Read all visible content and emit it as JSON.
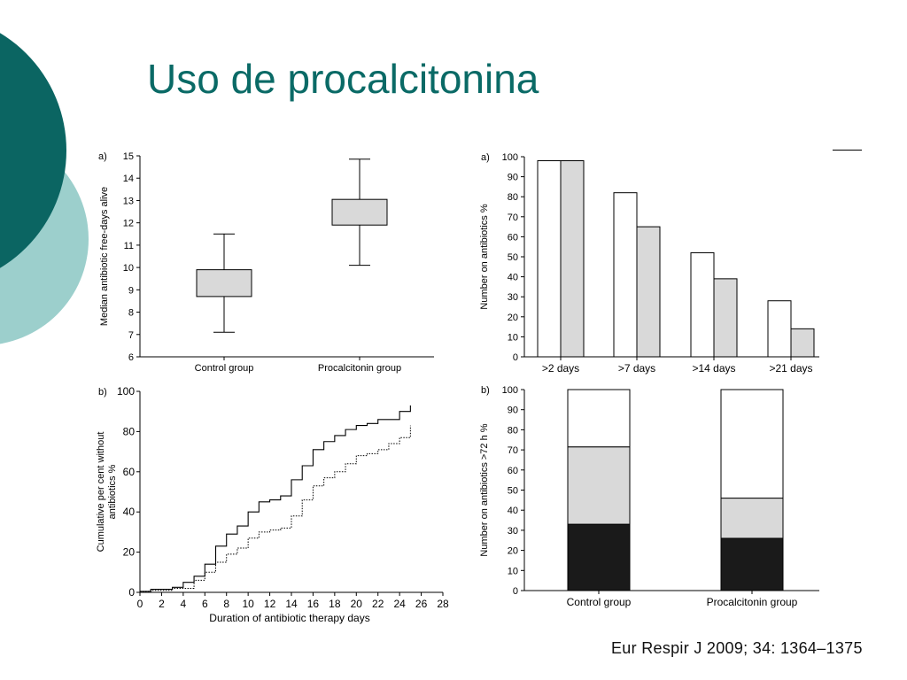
{
  "slide": {
    "title": "Uso de procalcitonina",
    "citation": "Eur Respir J 2009; 34: 1364–1375"
  },
  "colors": {
    "title": "#0a6a66",
    "circle_dark": "#0b6562",
    "circle_light": "#9ccfcc",
    "box_fill": "#d9d9d9",
    "black": "#1a1a1a"
  },
  "chart_data": [
    {
      "id": "boxplot",
      "type": "box",
      "panel_label": "a)",
      "ylabel": "Median antibiotic free-days alive",
      "ylim": [
        6,
        15
      ],
      "yticks": [
        6,
        7,
        8,
        9,
        10,
        11,
        12,
        13,
        14,
        15
      ],
      "categories": [
        "Control group",
        "Procalcitonin group"
      ],
      "boxes": [
        {
          "min": 7.1,
          "q1": 8.7,
          "q3": 9.9,
          "max": 11.5
        },
        {
          "min": 10.1,
          "q1": 11.9,
          "q3": 13.05,
          "max": 14.85
        }
      ]
    },
    {
      "id": "bars",
      "type": "bar",
      "panel_label": "a)",
      "ylabel": "Number on antibiotics %",
      "ylim": [
        0,
        100
      ],
      "yticks": [
        0,
        10,
        20,
        30,
        40,
        50,
        60,
        70,
        80,
        90,
        100
      ],
      "categories": [
        ">2 days",
        ">7 days",
        ">14 days",
        ">21 days"
      ],
      "series": [
        {
          "values": [
            98,
            82,
            52,
            28
          ],
          "fill": "#ffffff"
        },
        {
          "values": [
            98,
            65,
            39,
            14
          ],
          "fill": "#d9d9d9"
        }
      ]
    },
    {
      "id": "steps",
      "type": "line",
      "panel_label": "b)",
      "ylabel_lines": [
        "Cumulative per cent without",
        "antibiotics %"
      ],
      "xlabel": "Duration of antibiotic therapy days",
      "xlim": [
        0,
        28
      ],
      "ylim": [
        0,
        100
      ],
      "xticks": [
        0,
        2,
        4,
        6,
        8,
        10,
        12,
        14,
        16,
        18,
        20,
        22,
        24,
        26,
        28
      ],
      "yticks": [
        0,
        20,
        40,
        60,
        80,
        100
      ],
      "series": [
        {
          "style": "solid",
          "points": [
            [
              0,
              0.5
            ],
            [
              1,
              1.5
            ],
            [
              3,
              2.5
            ],
            [
              4,
              5
            ],
            [
              5,
              8
            ],
            [
              6,
              14
            ],
            [
              7,
              23
            ],
            [
              8,
              29
            ],
            [
              9,
              33
            ],
            [
              10,
              40
            ],
            [
              11,
              45
            ],
            [
              12,
              46
            ],
            [
              13,
              48
            ],
            [
              14,
              56
            ],
            [
              15,
              63
            ],
            [
              16,
              71
            ],
            [
              17,
              75
            ],
            [
              18,
              78
            ],
            [
              19,
              81
            ],
            [
              20,
              83
            ],
            [
              21,
              84
            ],
            [
              22,
              86
            ],
            [
              23,
              86
            ],
            [
              24,
              90
            ],
            [
              25,
              91
            ],
            [
              25,
              93
            ]
          ]
        },
        {
          "style": "dotted",
          "points": [
            [
              0,
              0.5
            ],
            [
              1,
              1
            ],
            [
              3,
              2
            ],
            [
              5,
              6
            ],
            [
              6,
              10
            ],
            [
              7,
              15
            ],
            [
              8,
              19
            ],
            [
              9,
              22
            ],
            [
              10,
              27
            ],
            [
              11,
              30
            ],
            [
              12,
              31
            ],
            [
              13,
              32
            ],
            [
              14,
              38
            ],
            [
              15,
              46
            ],
            [
              16,
              53
            ],
            [
              17,
              57
            ],
            [
              18,
              60
            ],
            [
              19,
              64
            ],
            [
              20,
              68
            ],
            [
              21,
              69
            ],
            [
              22,
              71
            ],
            [
              23,
              74
            ],
            [
              24,
              77
            ],
            [
              25,
              78
            ],
            [
              25,
              83
            ]
          ]
        }
      ]
    },
    {
      "id": "stacked",
      "type": "bar",
      "stacked": true,
      "panel_label": "b)",
      "ylabel": "Number on antibiotics >72 h %",
      "ylim": [
        0,
        100
      ],
      "yticks": [
        0,
        10,
        20,
        30,
        40,
        50,
        60,
        70,
        80,
        90,
        100
      ],
      "categories": [
        "Control group",
        "Procalcitonin group"
      ],
      "series": [
        {
          "values": [
            33,
            26
          ],
          "fill": "#1a1a1a"
        },
        {
          "values": [
            38.5,
            20
          ],
          "fill": "#d9d9d9"
        },
        {
          "values": [
            28.5,
            54
          ],
          "fill": "#ffffff"
        }
      ]
    }
  ]
}
